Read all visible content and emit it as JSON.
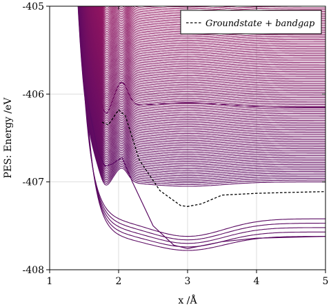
{
  "chart_data": {
    "type": "line",
    "xlabel": "x /Å",
    "ylabel": "PES: Energy /eV",
    "xlim": [
      1,
      5
    ],
    "ylim": [
      -408,
      -405
    ],
    "x_ticks": [
      1,
      2,
      3,
      4,
      5
    ],
    "y_ticks": [
      -405,
      -406,
      -407,
      -408
    ],
    "x_tick_labels": [
      "1",
      "2",
      "3",
      "4",
      "5"
    ],
    "y_tick_labels": [
      "-405",
      "-406",
      "-407",
      "-408"
    ],
    "grid": true,
    "legend": {
      "position": "top-right",
      "entries": [
        "Groundstate + bandgap"
      ]
    },
    "colors": {
      "low": "#5a0a62",
      "high": "#c42060",
      "dashed": "#000000"
    },
    "series_description": "approximately 200 excited-state PES curves, colored from dark purple (lowest) to crimson (highest)",
    "series_groups": [
      {
        "name": "",
        "count": 5,
        "asymptote_start": -407.42,
        "asymptote_step": -0.05,
        "min_at_x3": -407.62,
        "min_step": -0.04,
        "bump": 0.0,
        "color_index_start": 0
      },
      {
        "name": "",
        "count": 1,
        "asymptote_start": -406.15,
        "asymptote_step": 0.0,
        "min_at_x3": -406.1,
        "min_step": 0.0,
        "bump": 0.25,
        "color_index_start": 5
      },
      {
        "name": "",
        "count": 190,
        "asymptote_start": -407.0,
        "asymptote_step": 0.02,
        "min_at_x3": -407.05,
        "min_step": 0.02,
        "bump": 0.15,
        "color_index_start": 6
      }
    ],
    "dashed_series": {
      "name": "Groundstate + bandgap",
      "x": [
        1.76,
        1.85,
        2.0,
        2.1,
        2.3,
        2.6,
        2.9,
        3.0,
        3.2,
        3.5,
        4.0,
        4.5,
        5.0
      ],
      "y": [
        -406.32,
        -406.35,
        -406.18,
        -406.25,
        -406.75,
        -407.1,
        -407.27,
        -407.28,
        -407.25,
        -407.15,
        -407.13,
        -407.12,
        -407.11
      ]
    },
    "deep_curve_example": {
      "x": [
        1.5,
        1.7,
        1.8,
        1.9,
        2.05,
        2.2,
        2.5,
        2.8,
        3.0,
        3.5,
        4.0,
        5.0
      ],
      "y": [
        -405.9,
        -406.65,
        -406.82,
        -406.8,
        -406.72,
        -407.0,
        -407.5,
        -407.72,
        -407.76,
        -407.68,
        -407.64,
        -407.62
      ]
    }
  }
}
